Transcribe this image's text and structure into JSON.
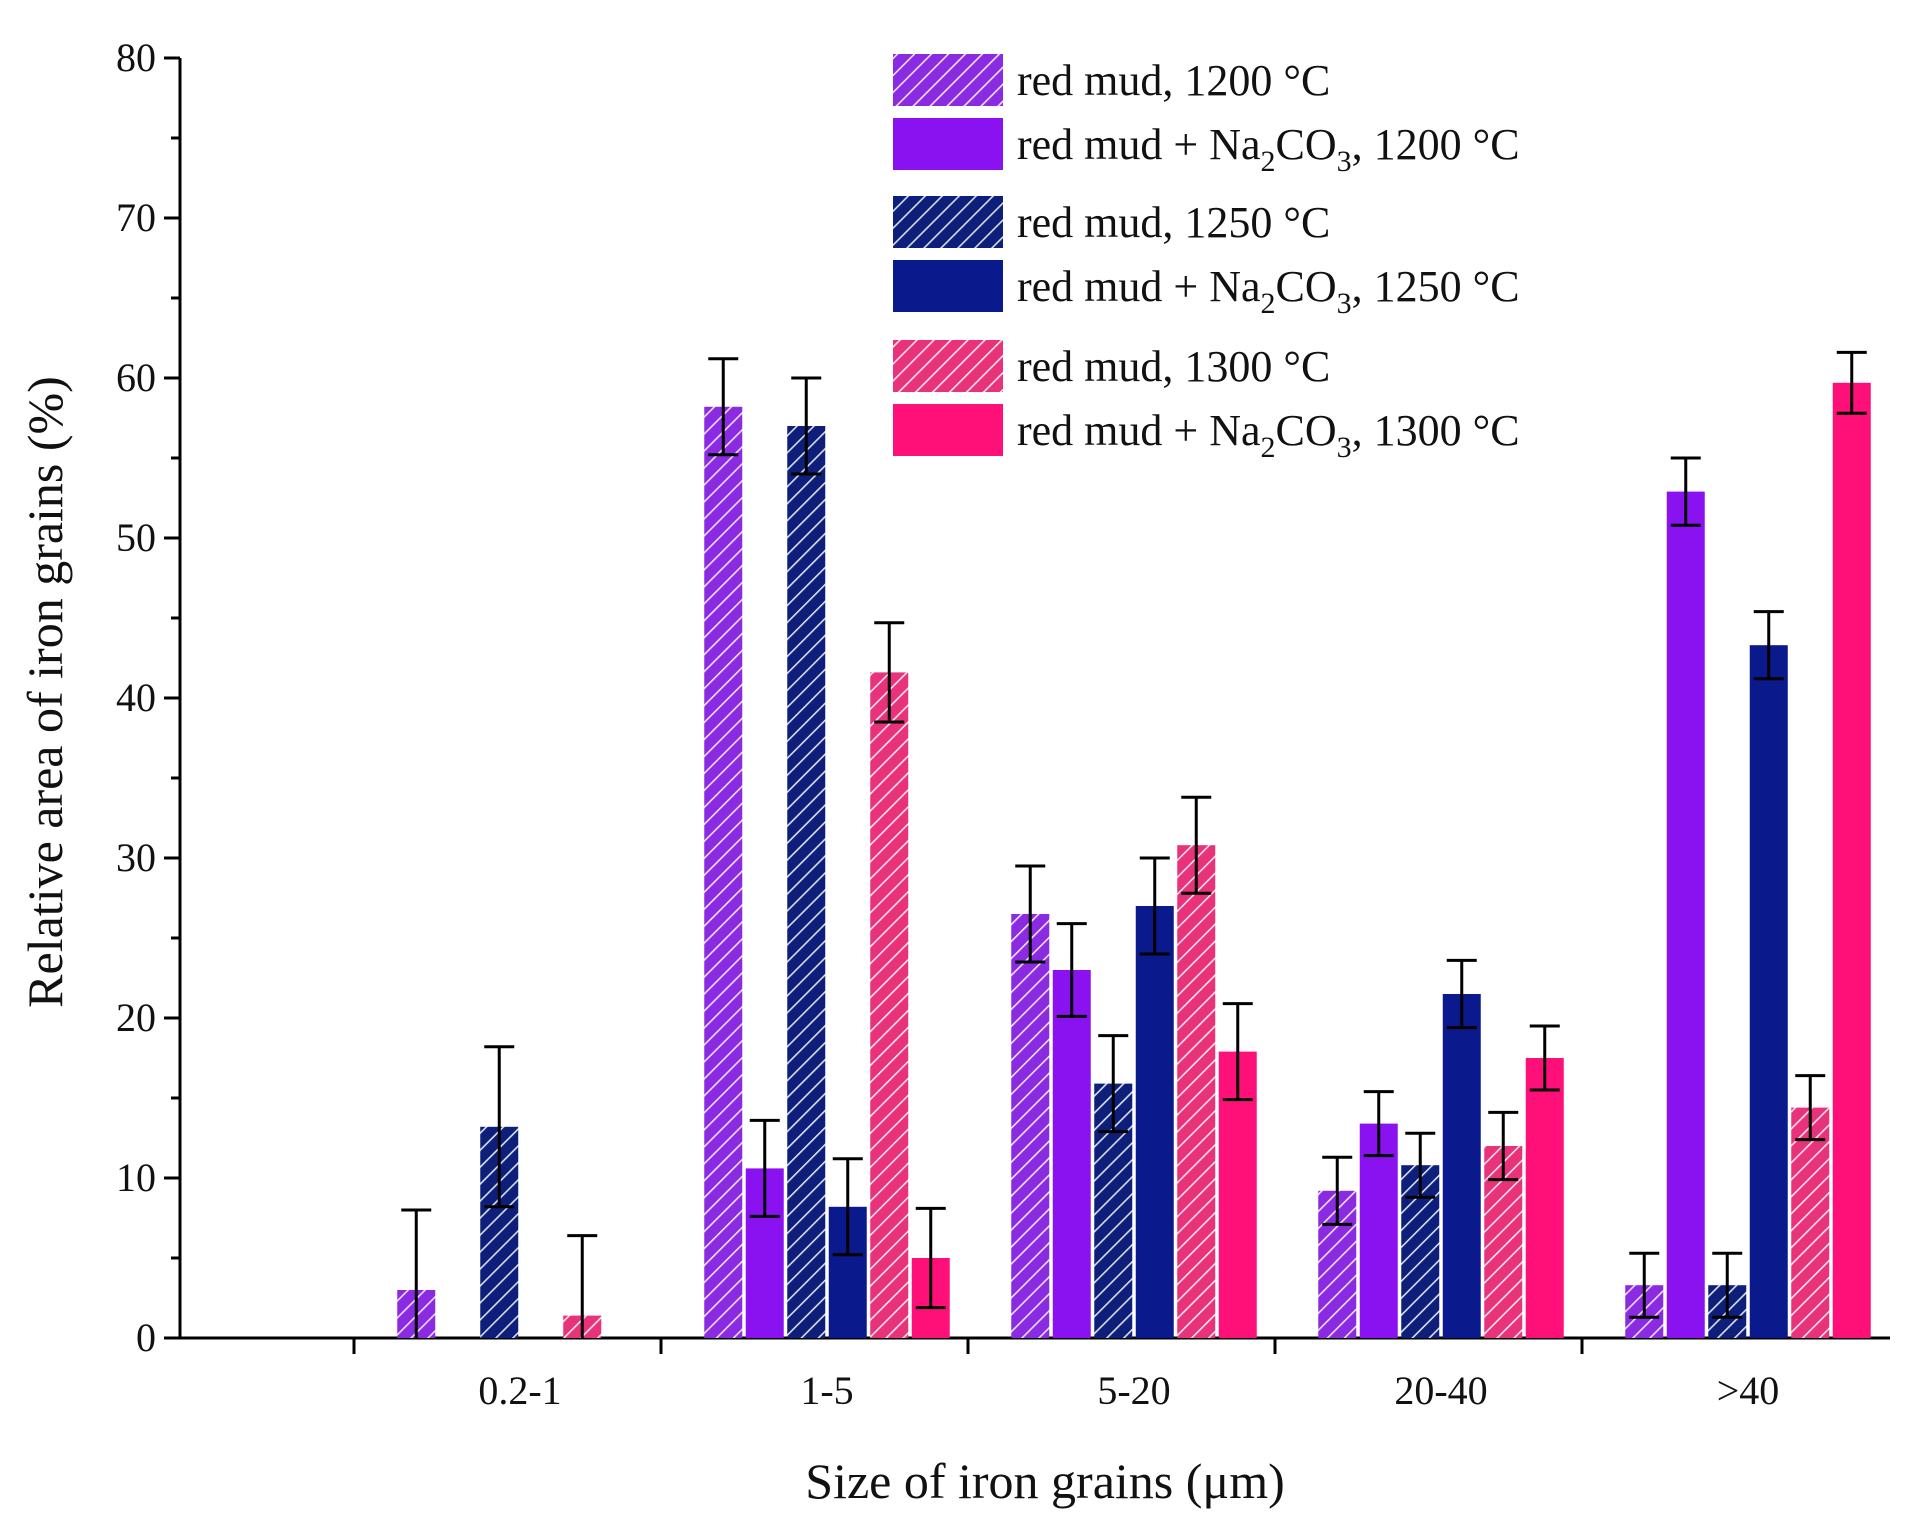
{
  "chart_data": {
    "type": "bar",
    "title": "",
    "xlabel": "Size of iron grains (μm)",
    "ylabel": "Relative area of iron grains (%)",
    "ylim": [
      0,
      80
    ],
    "yticks": [
      "0",
      "10",
      "20",
      "30",
      "40",
      "50",
      "60",
      "70",
      "80"
    ],
    "categories": [
      "0.2-1",
      "1-5",
      "5-20",
      "20-40",
      ">40"
    ],
    "legend_position": "top-right",
    "series": [
      {
        "name": "red mud, 1200 °C",
        "name_parts": {
          "pre": "red mud, 1200 °C",
          "sub": "",
          "post": ""
        },
        "color": "#8a2be2",
        "pattern": "hatched",
        "values": [
          3.0,
          58.2,
          26.5,
          9.2,
          3.3
        ],
        "errors": [
          5.0,
          3.0,
          3.0,
          2.1,
          2.0
        ]
      },
      {
        "name": "red mud + Na2CO3, 1200 °C",
        "name_parts": {
          "pre": "red mud + Na",
          "sub": "2",
          "mid": "CO",
          "sub2": "3",
          "post": ", 1200 °C"
        },
        "color": "#8a12f0",
        "pattern": "solid",
        "values": [
          null,
          10.6,
          23.0,
          13.4,
          52.9
        ],
        "errors": [
          null,
          3.0,
          2.9,
          2.0,
          2.1
        ]
      },
      {
        "name": "red mud, 1250 °C",
        "name_parts": {
          "pre": "red mud, 1250 °C",
          "sub": "",
          "post": ""
        },
        "color": "#0d1f7a",
        "pattern": "hatched",
        "values": [
          13.2,
          57.0,
          15.9,
          10.8,
          3.3
        ],
        "errors": [
          5.0,
          3.0,
          3.0,
          2.0,
          2.0
        ]
      },
      {
        "name": "red mud + Na2CO3, 1250 °C",
        "name_parts": {
          "pre": "red mud + Na",
          "sub": "2",
          "mid": "CO",
          "sub2": "3",
          "post": ", 1250 °C"
        },
        "color": "#0a1a8c",
        "pattern": "solid",
        "values": [
          null,
          8.2,
          27.0,
          21.5,
          43.3
        ],
        "errors": [
          null,
          3.0,
          3.0,
          2.1,
          2.1
        ]
      },
      {
        "name": "red mud, 1300 °C",
        "name_parts": {
          "pre": "red mud, 1300 °C",
          "sub": "",
          "post": ""
        },
        "color": "#e8327a",
        "pattern": "hatched",
        "values": [
          1.4,
          41.6,
          30.8,
          12.0,
          14.4
        ],
        "errors": [
          5.0,
          3.1,
          3.0,
          2.1,
          2.0
        ]
      },
      {
        "name": "red mud + Na2CO3, 1300 °C",
        "name_parts": {
          "pre": "red mud + Na",
          "sub": "2",
          "mid": "CO",
          "sub2": "3",
          "post": ", 1300 °C"
        },
        "color": "#ff1078",
        "pattern": "solid",
        "values": [
          null,
          5.0,
          17.9,
          17.5,
          59.7
        ],
        "errors": [
          null,
          3.1,
          3.0,
          2.0,
          1.9
        ]
      }
    ]
  }
}
